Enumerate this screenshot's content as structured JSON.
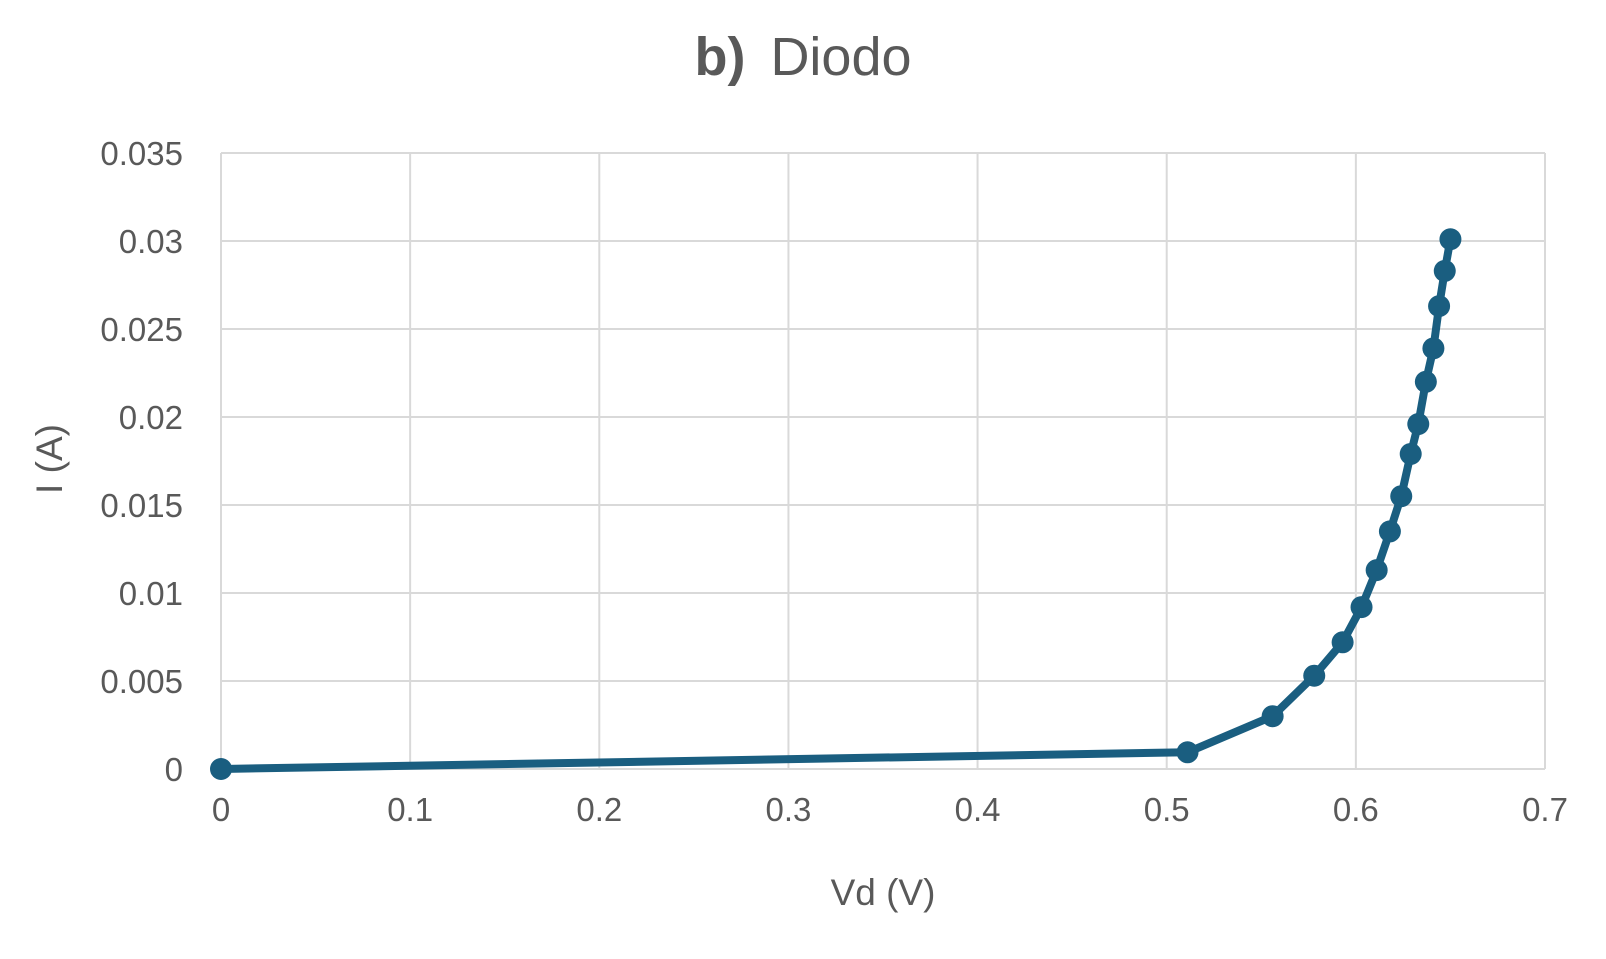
{
  "chart_data": {
    "type": "scatter",
    "title_prefix": "b)",
    "title_text": "Diodo",
    "xlabel": "Vd (V)",
    "ylabel": "I (A)",
    "xlim": [
      0,
      0.7
    ],
    "ylim": [
      0,
      0.035
    ],
    "x_ticks": [
      "0",
      "0.1",
      "0.2",
      "0.3",
      "0.4",
      "0.5",
      "0.6",
      "0.7"
    ],
    "y_ticks": [
      "0",
      "0.005",
      "0.01",
      "0.015",
      "0.02",
      "0.025",
      "0.03",
      "0.035"
    ],
    "grid": true,
    "legend": "none",
    "color": "#1a5e80",
    "series": [
      {
        "x": [
          0,
          0.511,
          0.556,
          0.578,
          0.593,
          0.603,
          0.611,
          0.618,
          0.624,
          0.629,
          0.633,
          0.637,
          0.641,
          0.644,
          0.647,
          0.65
        ],
        "y": [
          0,
          0.00095,
          0.003,
          0.0053,
          0.0072,
          0.0092,
          0.0113,
          0.0135,
          0.0155,
          0.0179,
          0.0196,
          0.022,
          0.0239,
          0.0263,
          0.0283,
          0.0301
        ]
      }
    ]
  }
}
